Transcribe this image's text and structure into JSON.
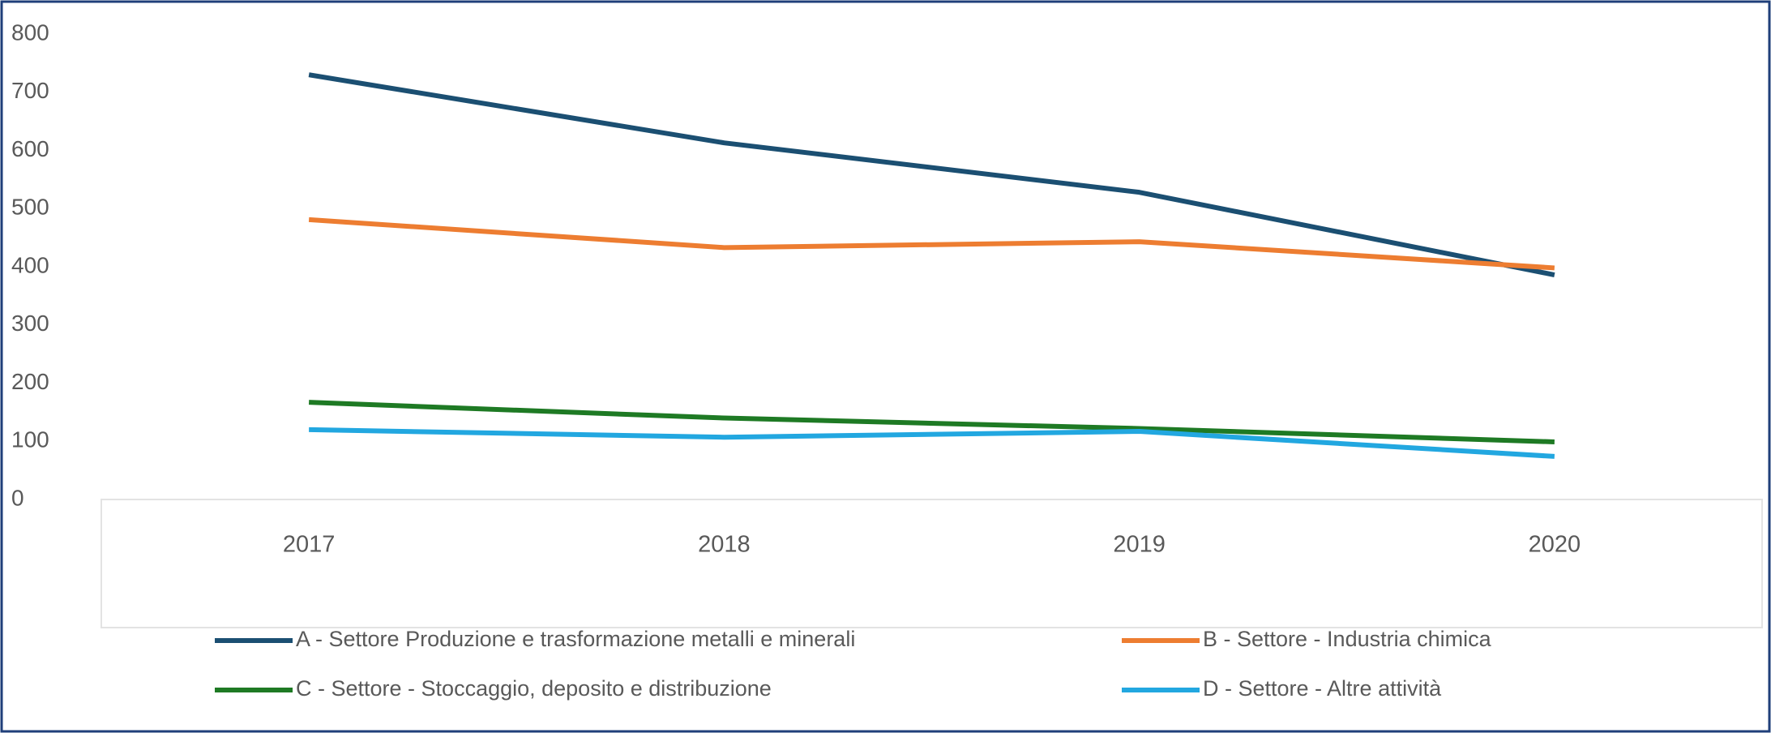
{
  "chart_data": {
    "type": "line",
    "categories": [
      "2017",
      "2018",
      "2019",
      "2020"
    ],
    "series": [
      {
        "name": "A - Settore Produzione e trasformazione metalli e minerali",
        "color": "#1b4f72",
        "values": [
          730,
          613,
          528,
          386
        ]
      },
      {
        "name": "B - Settore - Industria chimica",
        "color": "#ed7d31",
        "values": [
          481,
          433,
          443,
          398
        ]
      },
      {
        "name": "C - Settore - Stoccaggio, deposito e distribuzione",
        "color": "#1e7a24",
        "values": [
          167,
          140,
          122,
          99
        ]
      },
      {
        "name": "D - Settore - Altre attività",
        "color": "#22a7e0",
        "values": [
          120,
          107,
          117,
          74
        ]
      }
    ],
    "ylim": [
      0,
      800
    ],
    "yticks": [
      0,
      100,
      200,
      300,
      400,
      500,
      600,
      700,
      800
    ],
    "grid": false
  }
}
